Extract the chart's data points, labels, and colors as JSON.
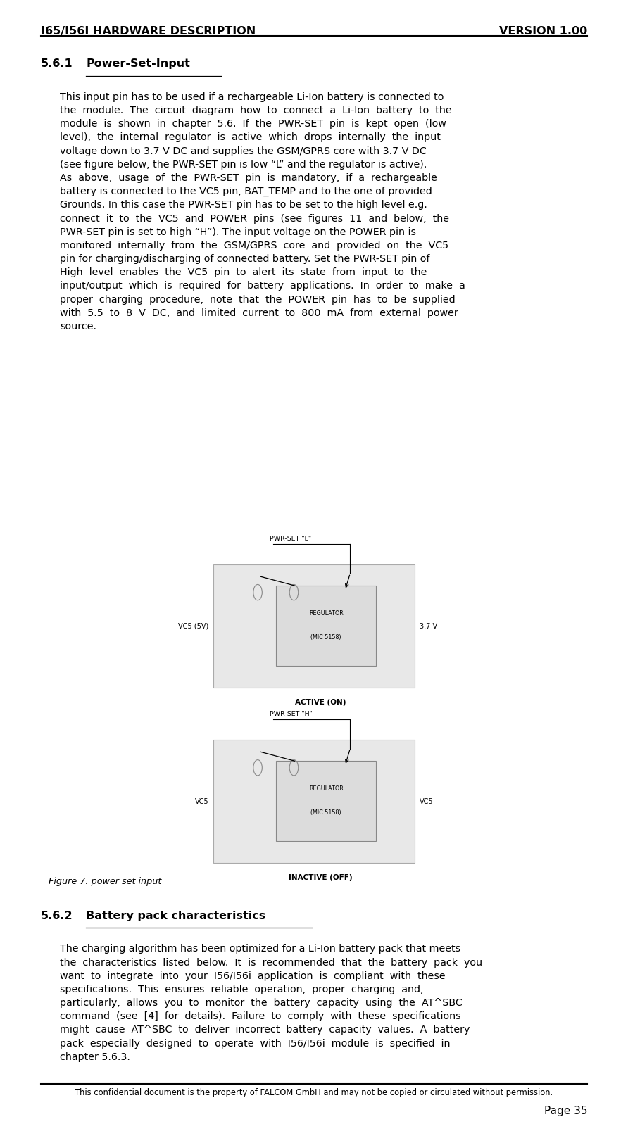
{
  "header_left": "I65/I56I HARDWARE DESCRIPTION",
  "header_right": "VERSION 1.00",
  "footer_text": "This confidential document is the property of FALCOM GmbH and may not be copied or circulated without permission.",
  "footer_page": "Page 35",
  "section_561_title": "5.6.1    Power-Set-Input",
  "section_562_title": "5.6.2    Battery pack characteristics",
  "figure_caption": "Figure 7: power set input",
  "bg_color": "#ffffff",
  "text_color": "#000000"
}
